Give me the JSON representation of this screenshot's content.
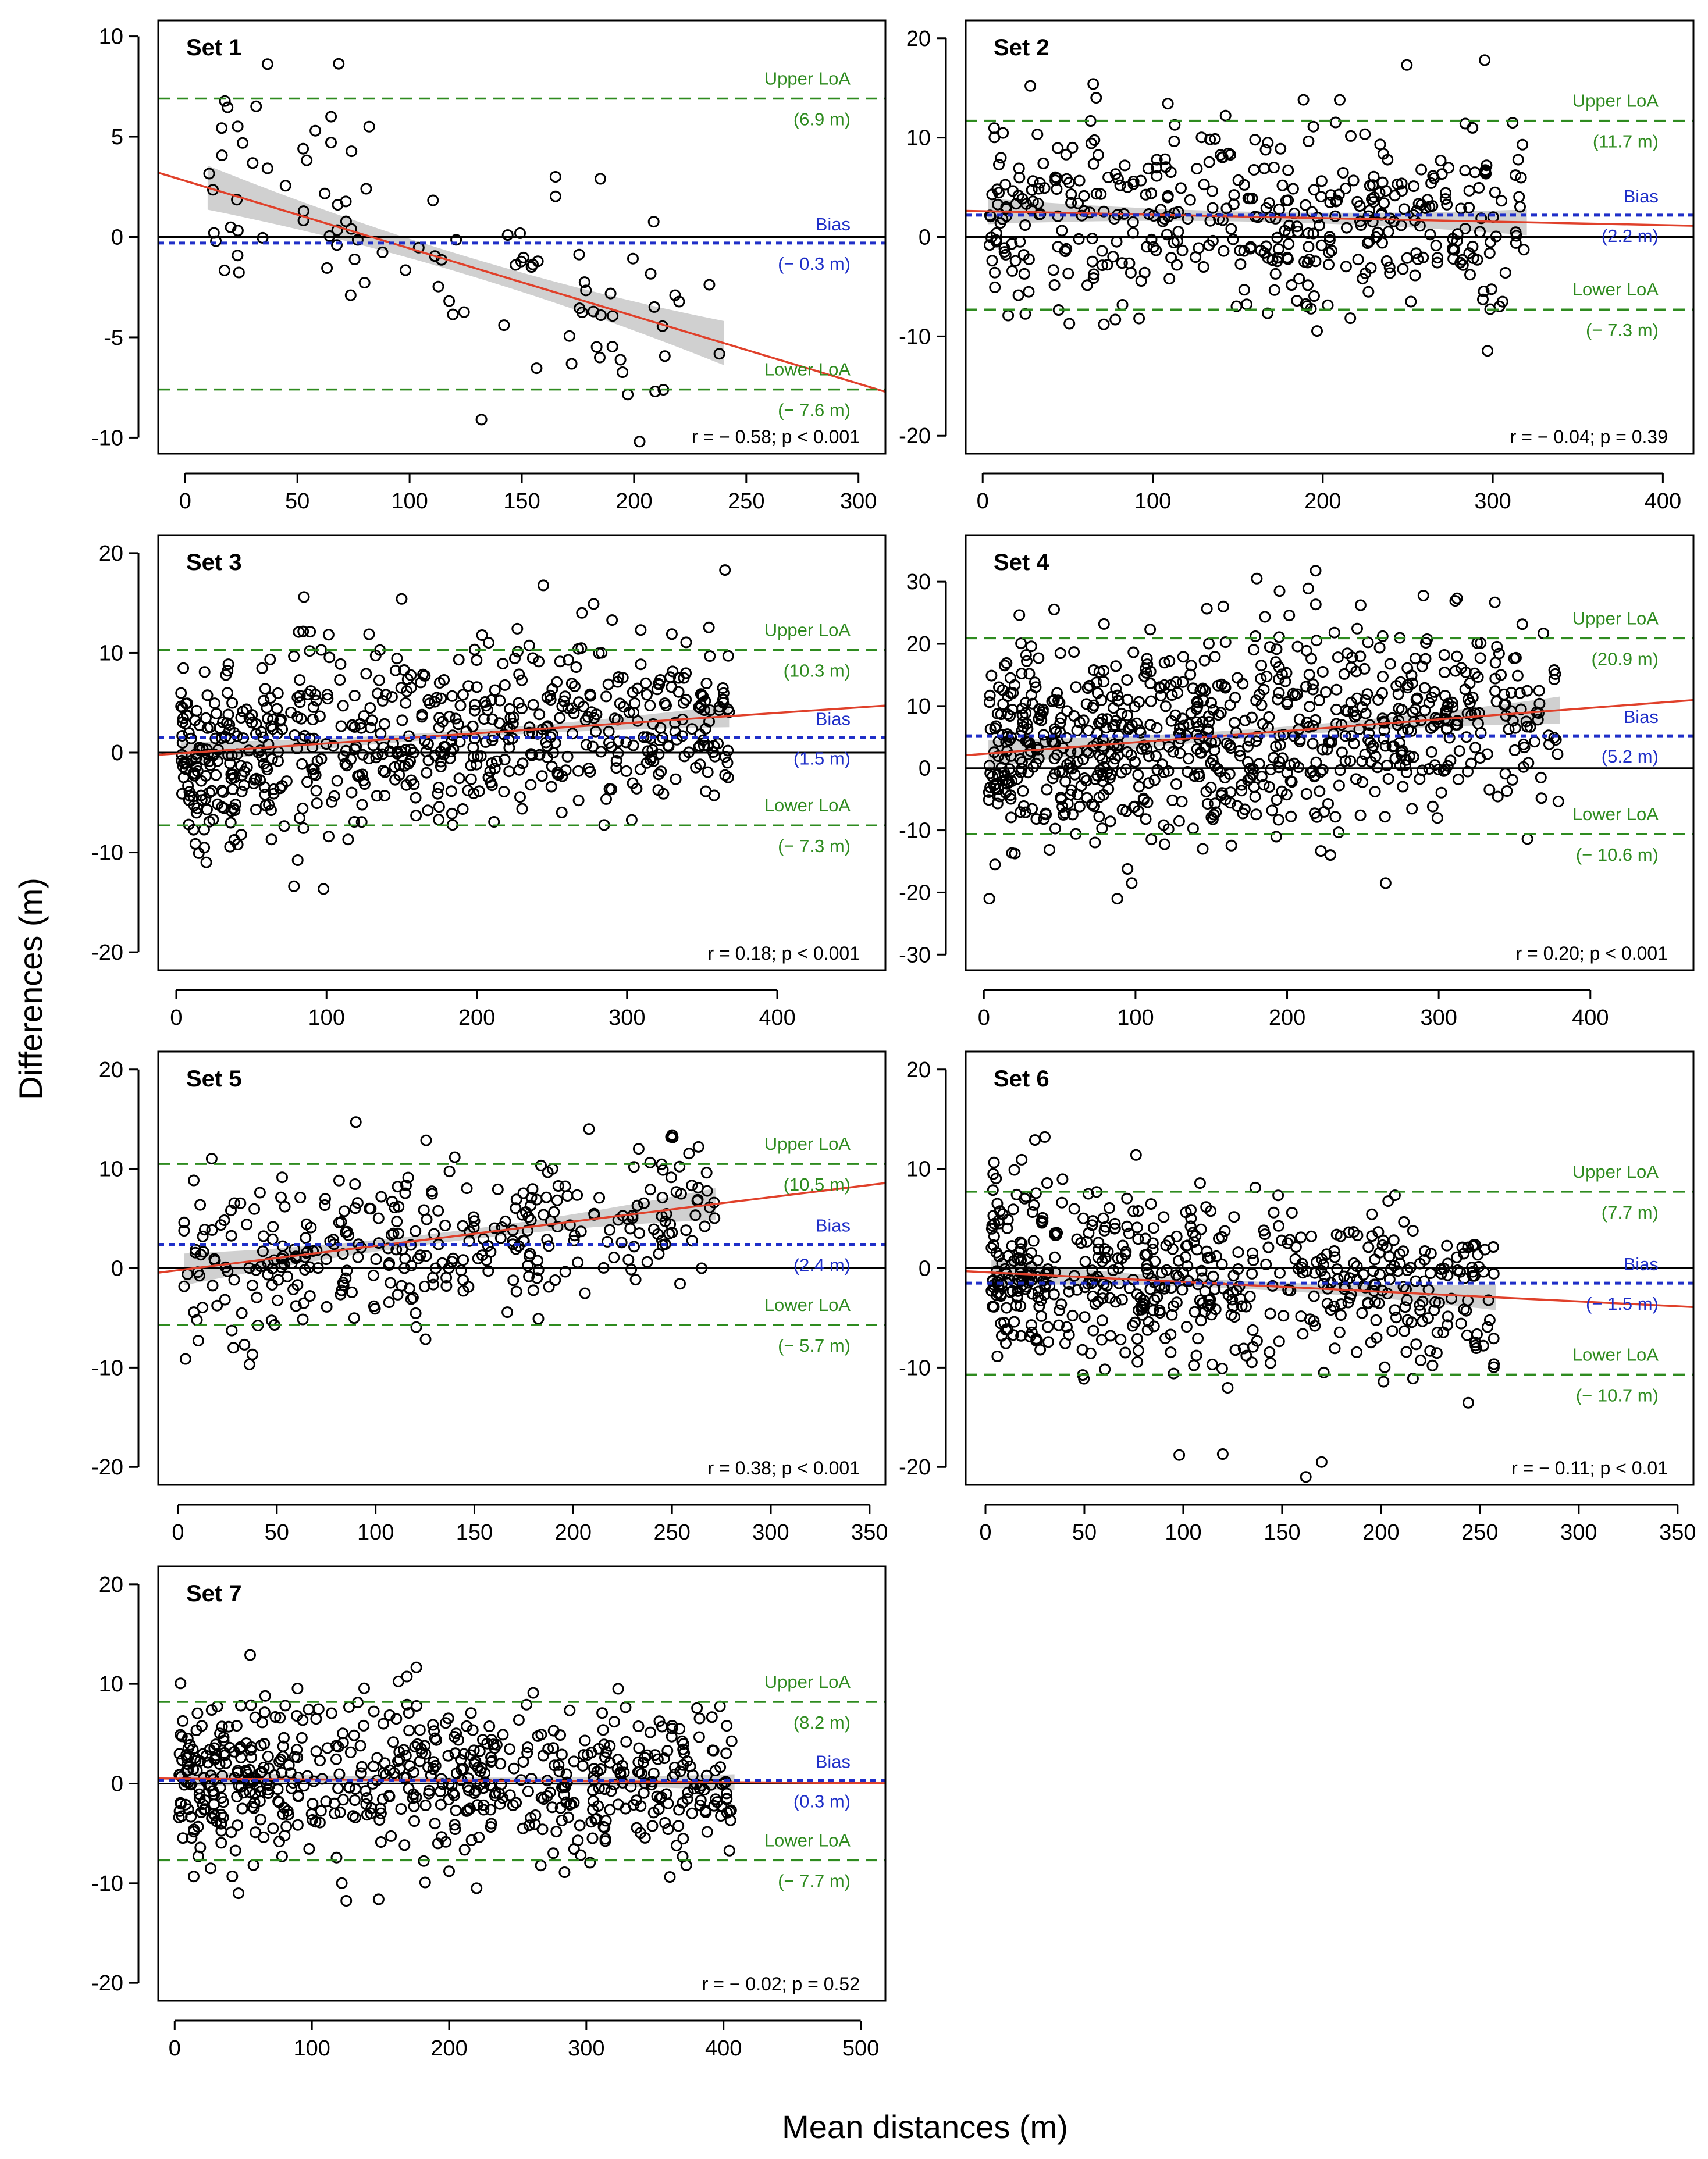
{
  "figure": {
    "xlabel": "Mean distances (m)",
    "ylabel": "Differences (m)",
    "colors": {
      "points": "#000000",
      "zero_line": "#000000",
      "bias": "#1f2fc8",
      "loa": "#2e8b1f",
      "regression": "#e0402a",
      "confidence_band": "#c8c8c8"
    }
  },
  "chart_data": [
    {
      "type": "scatter",
      "title": "Set 1",
      "xlim": [
        -12,
        312
      ],
      "ylim": [
        -10.8,
        10.8
      ],
      "xticks": [
        0,
        50,
        100,
        150,
        200,
        250,
        300
      ],
      "yticks": [
        -10,
        -5,
        0,
        5,
        10
      ],
      "bias": -0.3,
      "upper_loa": 6.9,
      "lower_loa": -7.6,
      "bias_label": "Bias",
      "bias_value_label": "(− 0.3 m)",
      "upper_label": "Upper LoA",
      "upper_value_label": "(6.9 m)",
      "lower_label": "Lower LoA",
      "lower_value_label": "(− 7.6 m)",
      "regression": {
        "intercept": 2.8,
        "slope": -0.0337
      },
      "band": {
        "x": [
          10,
          240
        ],
        "halfwidth_ends": 1.1,
        "halfwidth_mid": 0.45
      },
      "stats_label": "r = − 0.58; p < 0.001",
      "points": {
        "n": 95,
        "x_range": [
          10,
          240
        ],
        "x_skew": 1.4,
        "sd": 2.7,
        "extremes": [
          [
            132,
            -9.1
          ],
          [
            58,
            5.3
          ],
          [
            82,
            5.5
          ],
          [
            65,
            6.0
          ],
          [
            165,
            3.0
          ],
          [
            185,
            2.9
          ]
        ]
      }
    },
    {
      "type": "scatter",
      "title": "Set 2",
      "xlim": [
        -10,
        418
      ],
      "ylim": [
        -21.8,
        21.8
      ],
      "xticks": [
        0,
        100,
        200,
        300,
        400
      ],
      "yticks": [
        -20,
        -10,
        0,
        10,
        20
      ],
      "bias": 2.2,
      "upper_loa": 11.7,
      "lower_loa": -7.3,
      "bias_label": "Bias",
      "bias_value_label": "(2.2 m)",
      "upper_label": "Upper LoA",
      "upper_value_label": "(11.7 m)",
      "lower_label": "Lower LoA",
      "lower_value_label": "(− 7.3 m)",
      "regression": {
        "intercept": 2.6,
        "slope": -0.0035
      },
      "band": {
        "x": [
          3,
          320
        ],
        "halfwidth_ends": 1.3,
        "halfwidth_mid": 0.5
      },
      "stats_label": "r = − 0.04; p = 0.39",
      "points": {
        "n": 430,
        "x_range": [
          3,
          320
        ],
        "x_skew": 1.15,
        "sd": 4.9,
        "extremes": [
          [
            28,
            15.2
          ],
          [
            65,
            15.4
          ],
          [
            210,
            13.8
          ],
          [
            92,
            -8.2
          ],
          [
            15,
            -7.9
          ]
        ]
      }
    },
    {
      "type": "scatter",
      "title": "Set 3",
      "xlim": [
        -12,
        472
      ],
      "ylim": [
        -21.8,
        21.8
      ],
      "xticks": [
        0,
        100,
        200,
        300,
        400
      ],
      "yticks": [
        -20,
        -10,
        0,
        10,
        20
      ],
      "bias": 1.5,
      "upper_loa": 10.3,
      "lower_loa": -7.3,
      "bias_label": "Bias",
      "bias_value_label": "(1.5 m)",
      "upper_label": "Upper LoA",
      "upper_value_label": "(10.3 m)",
      "lower_label": "Lower LoA",
      "lower_value_label": "(− 7.3 m)",
      "regression": {
        "intercept": -0.1,
        "slope": 0.0102
      },
      "band": {
        "x": [
          3,
          368
        ],
        "halfwidth_ends": 1.1,
        "halfwidth_mid": 0.35
      },
      "stats_label": "r = 0.18; p < 0.001",
      "points": {
        "n": 640,
        "x_range": [
          3,
          368
        ],
        "x_skew": 1.3,
        "sd": 4.5,
        "extremes": [
          [
            85,
            15.6
          ],
          [
            150,
            15.4
          ],
          [
            270,
            14.0
          ],
          [
            20,
            -11.0
          ]
        ]
      }
    },
    {
      "type": "scatter",
      "title": "Set 4",
      "xlim": [
        -12,
        468
      ],
      "ylim": [
        -32.5,
        37.5
      ],
      "xticks": [
        0,
        100,
        200,
        300,
        400
      ],
      "yticks": [
        -30,
        -20,
        -10,
        0,
        10,
        20,
        30
      ],
      "bias": 5.2,
      "upper_loa": 20.9,
      "lower_loa": -10.6,
      "bias_label": "Bias",
      "bias_value_label": "(5.2 m)",
      "upper_label": "Upper LoA",
      "upper_value_label": "(20.9 m)",
      "lower_label": "Lower LoA",
      "lower_value_label": "(− 10.6 m)",
      "regression": {
        "intercept": 2.3,
        "slope": 0.0185
      },
      "band": {
        "x": [
          3,
          380
        ],
        "halfwidth_ends": 2.2,
        "halfwidth_mid": 0.7
      },
      "stats_label": "r = 0.20; p < 0.001",
      "points": {
        "n": 780,
        "x_range": [
          3,
          380
        ],
        "x_skew": 1.25,
        "sd": 8.0,
        "extremes": [
          [
            180,
            30.5
          ],
          [
            195,
            28.5
          ],
          [
            88,
            -21.0
          ],
          [
            265,
            -18.5
          ]
        ]
      }
    },
    {
      "type": "scatter",
      "title": "Set 5",
      "xlim": [
        -10,
        358
      ],
      "ylim": [
        -21.8,
        21.8
      ],
      "xticks": [
        0,
        50,
        100,
        150,
        200,
        250,
        300,
        350
      ],
      "yticks": [
        -20,
        -10,
        0,
        10,
        20
      ],
      "bias": 2.4,
      "upper_loa": 10.5,
      "lower_loa": -5.7,
      "bias_label": "Bias",
      "bias_value_label": "(2.4 m)",
      "upper_label": "Upper LoA",
      "upper_value_label": "(10.5 m)",
      "lower_label": "Lower LoA",
      "lower_value_label": "(− 5.7 m)",
      "regression": {
        "intercept": -0.2,
        "slope": 0.0245
      },
      "band": {
        "x": [
          3,
          272
        ],
        "halfwidth_ends": 1.6,
        "halfwidth_mid": 0.5
      },
      "stats_label": "r = 0.38; p < 0.001",
      "points": {
        "n": 330,
        "x_range": [
          3,
          272
        ],
        "x_skew": 1.2,
        "sd": 3.9,
        "extremes": [
          [
            90,
            14.7
          ],
          [
            208,
            14.0
          ],
          [
            28,
            -8.0
          ],
          [
            265,
            0.0
          ]
        ]
      }
    },
    {
      "type": "scatter",
      "title": "Set 6",
      "xlim": [
        -10,
        358
      ],
      "ylim": [
        -21.8,
        21.8
      ],
      "xticks": [
        0,
        50,
        100,
        150,
        200,
        250,
        300,
        350
      ],
      "yticks": [
        -20,
        -10,
        0,
        10,
        20
      ],
      "bias": -1.5,
      "upper_loa": 7.7,
      "lower_loa": -10.7,
      "bias_label": "Bias",
      "bias_value_label": "(− 1.5 m)",
      "upper_label": "Upper LoA",
      "upper_value_label": "(7.7 m)",
      "lower_label": "Lower LoA",
      "lower_value_label": "(− 10.7 m)",
      "regression": {
        "intercept": -0.4,
        "slope": -0.0098
      },
      "band": {
        "x": [
          3,
          258
        ],
        "halfwidth_ends": 1.3,
        "halfwidth_mid": 0.4
      },
      "stats_label": "r = − 0.11; p < 0.01",
      "points": {
        "n": 560,
        "x_range": [
          3,
          258
        ],
        "x_skew": 1.45,
        "sd": 4.3,
        "extremes": [
          [
            25,
            12.9
          ],
          [
            30,
            13.2
          ],
          [
            162,
            -21.0
          ],
          [
            170,
            -19.5
          ],
          [
            98,
            -18.8
          ],
          [
            120,
            -18.7
          ]
        ]
      }
    },
    {
      "type": "scatter",
      "title": "Set 7",
      "xlim": [
        -12,
        518
      ],
      "ylim": [
        -21.8,
        21.8
      ],
      "xticks": [
        0,
        100,
        200,
        300,
        400,
        500
      ],
      "yticks": [
        -20,
        -10,
        0,
        10,
        20
      ],
      "bias": 0.3,
      "upper_loa": 8.2,
      "lower_loa": -7.7,
      "bias_label": "Bias",
      "bias_value_label": "(0.3 m)",
      "upper_label": "Upper LoA",
      "upper_value_label": "(8.2 m)",
      "lower_label": "Lower LoA",
      "lower_value_label": "(− 7.7 m)",
      "regression": {
        "intercept": 0.5,
        "slope": -0.0009
      },
      "band": {
        "x": [
          3,
          408
        ],
        "halfwidth_ends": 0.8,
        "halfwidth_mid": 0.3
      },
      "stats_label": "r = − 0.02; p = 0.52",
      "points": {
        "n": 620,
        "x_range": [
          3,
          408
        ],
        "x_skew": 1.2,
        "sd": 4.0,
        "extremes": [
          [
            55,
            12.9
          ],
          [
            220,
            -10.5
          ],
          [
            200,
            -8.8
          ]
        ]
      }
    }
  ]
}
